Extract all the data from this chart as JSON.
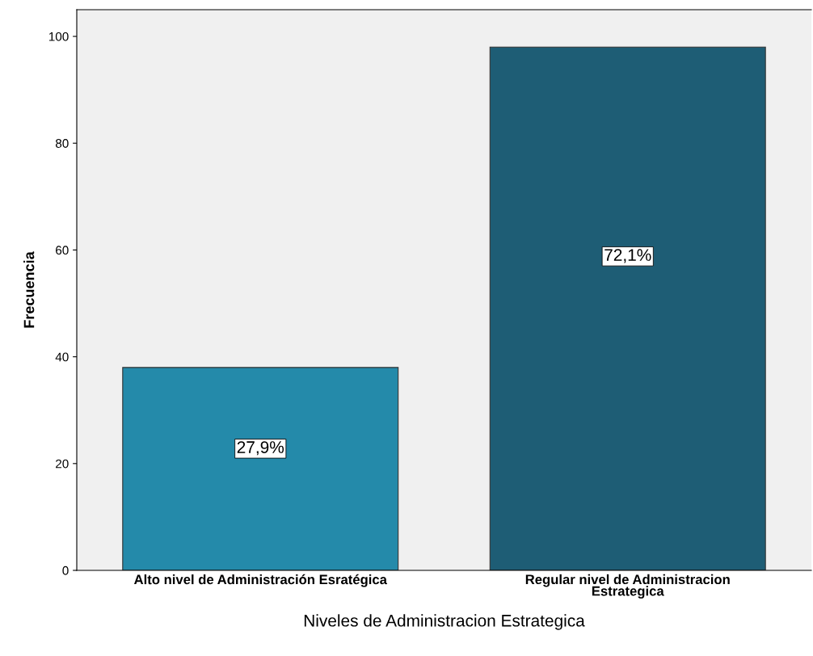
{
  "chart_data": {
    "type": "bar",
    "xlabel": "Niveles de Administracion Estrategica",
    "ylabel": "Frecuencia",
    "categories": [
      "Alto nivel de Administración Esratégica",
      "Regular nivel de Administracion\nEstrategica"
    ],
    "values": [
      38,
      98
    ],
    "colors": [
      "#248aaa",
      "#1e5d75"
    ],
    "annotations": [
      "27,9%",
      "72,1%"
    ],
    "ylim": [
      0,
      105
    ],
    "yticks": [
      0,
      20,
      40,
      60,
      80,
      100
    ],
    "grid": false,
    "legend": false
  }
}
